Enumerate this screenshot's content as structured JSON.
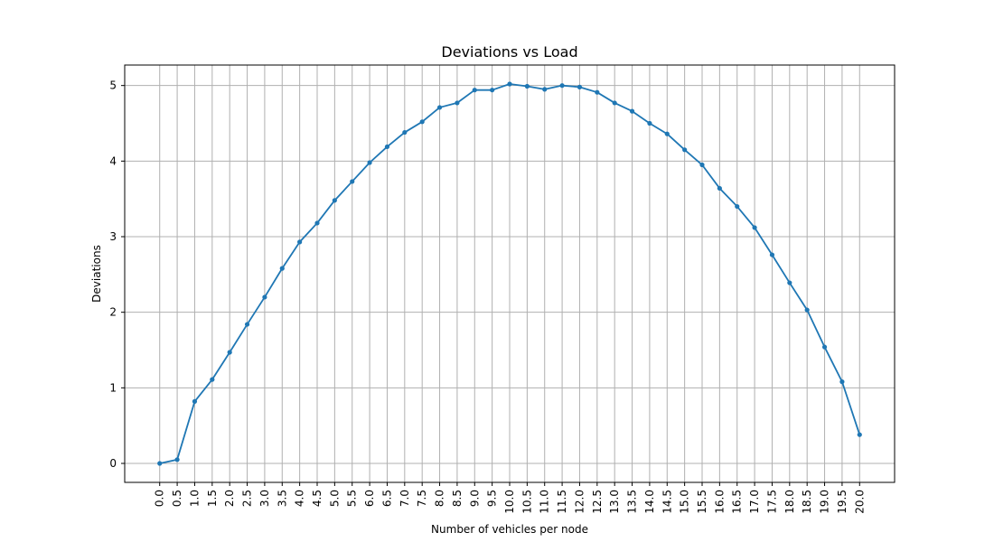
{
  "chart_data": {
    "type": "line",
    "title": "Deviations vs Load",
    "xlabel": "Number of vehicles per node",
    "ylabel": "Deviations",
    "x": [
      0.0,
      0.5,
      1.0,
      1.5,
      2.0,
      2.5,
      3.0,
      3.5,
      4.0,
      4.5,
      5.0,
      5.5,
      6.0,
      6.5,
      7.0,
      7.5,
      8.0,
      8.5,
      9.0,
      9.5,
      10.0,
      10.5,
      11.0,
      11.5,
      12.0,
      12.5,
      13.0,
      13.5,
      14.0,
      14.5,
      15.0,
      15.5,
      16.0,
      16.5,
      17.0,
      17.5,
      18.0,
      18.5,
      19.0,
      19.5,
      20.0
    ],
    "xtick_labels": [
      "0.0",
      "0.5",
      "1.0",
      "1.5",
      "2.0",
      "2.5",
      "3.0",
      "3.5",
      "4.0",
      "4.5",
      "5.0",
      "5.5",
      "6.0",
      "6.5",
      "7.0",
      "7.5",
      "8.0",
      "8.5",
      "9.0",
      "9.5",
      "10.0",
      "10.5",
      "11.0",
      "11.5",
      "12.0",
      "12.5",
      "13.0",
      "13.5",
      "14.0",
      "14.5",
      "15.0",
      "15.5",
      "16.0",
      "16.5",
      "17.0",
      "17.5",
      "18.0",
      "18.5",
      "19.0",
      "19.5",
      "20.0"
    ],
    "yticks": [
      0,
      1,
      2,
      3,
      4,
      5
    ],
    "ytick_labels": [
      "0",
      "1",
      "2",
      "3",
      "4",
      "5"
    ],
    "series": [
      {
        "values": [
          0.0,
          0.05,
          0.82,
          1.11,
          1.47,
          1.84,
          2.2,
          2.58,
          2.93,
          3.18,
          3.48,
          3.73,
          3.98,
          4.19,
          4.38,
          4.52,
          4.71,
          4.77,
          4.94,
          4.94,
          5.02,
          4.99,
          4.95,
          5.0,
          4.98,
          4.91,
          4.77,
          4.66,
          4.5,
          4.36,
          4.15,
          3.95,
          3.64,
          3.4,
          3.12,
          2.76,
          2.39,
          2.03,
          1.54,
          1.08,
          0.38
        ],
        "color": "#1f77b4",
        "marker": "circle"
      }
    ],
    "xlim": [
      -1.0,
      21.0
    ],
    "ylim": [
      -0.251,
      5.271
    ],
    "grid": true,
    "x_tick_rotation": "vertical"
  }
}
